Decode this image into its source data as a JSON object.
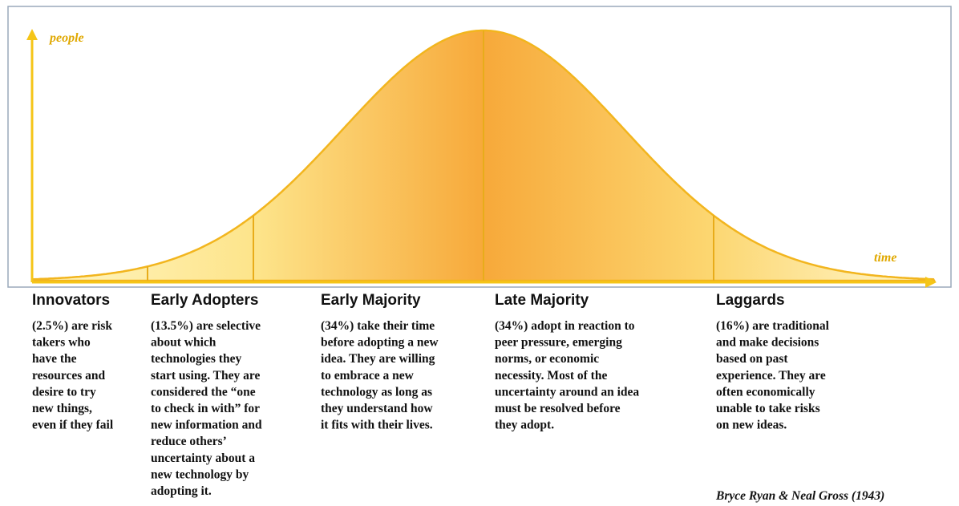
{
  "axes": {
    "y_label": "people",
    "x_label": "time"
  },
  "segments": [
    {
      "title": "Innovators",
      "lines": [
        "(2.5%) are risk",
        "takers who",
        "have the",
        "resources and",
        "desire to try",
        "new things,",
        "even if they fail"
      ]
    },
    {
      "title": "Early Adopters",
      "lines": [
        "(13.5%) are selective",
        "about which",
        "technologies they",
        "start using. They are",
        "considered the “one",
        "to check in with” for",
        "new information and",
        "reduce others’",
        "uncertainty about a",
        "new technology by",
        "adopting it."
      ]
    },
    {
      "title": "Early Majority",
      "lines": [
        "(34%) take their time",
        "before adopting a new",
        "idea. They are willing",
        "to embrace a new",
        "technology as long as",
        "they understand how",
        "it fits with their lives."
      ]
    },
    {
      "title": "Late Majority",
      "lines": [
        "(34%) adopt in reaction to",
        "peer pressure, emerging",
        "norms, or economic",
        "necessity. Most of the",
        "uncertainty around an idea",
        "must be resolved before",
        "they adopt."
      ]
    },
    {
      "title": "Laggards",
      "lines": [
        "(16%) are traditional",
        "and make decisions",
        "based on past",
        "experience. They are",
        "often economically",
        "unable to take risks",
        "on new ideas."
      ]
    }
  ],
  "citation": "Bryce Ryan & Neal Gross (1943)"
}
